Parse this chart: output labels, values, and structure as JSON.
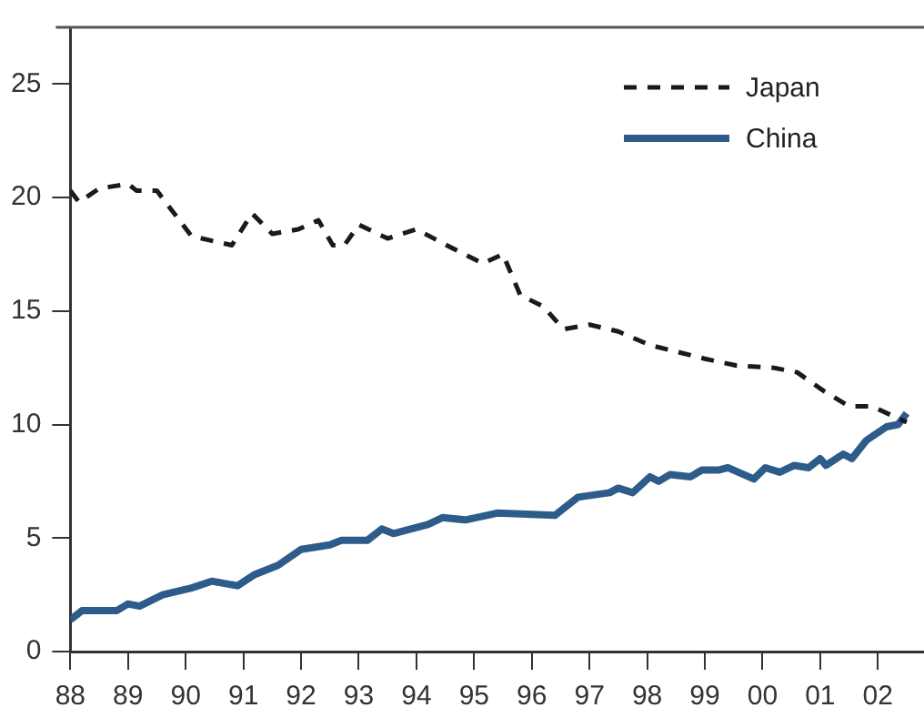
{
  "chart_data": {
    "type": "line",
    "xlim": [
      1988,
      2002.8
    ],
    "ylim": [
      0,
      27.5
    ],
    "xticks": [
      {
        "value": 1988,
        "label": "88"
      },
      {
        "value": 1989,
        "label": "89"
      },
      {
        "value": 1990,
        "label": "90"
      },
      {
        "value": 1991,
        "label": "91"
      },
      {
        "value": 1992,
        "label": "92"
      },
      {
        "value": 1993,
        "label": "93"
      },
      {
        "value": 1994,
        "label": "94"
      },
      {
        "value": 1995,
        "label": "95"
      },
      {
        "value": 1996,
        "label": "96"
      },
      {
        "value": 1997,
        "label": "97"
      },
      {
        "value": 1998,
        "label": "98"
      },
      {
        "value": 1999,
        "label": "99"
      },
      {
        "value": 2000,
        "label": "00"
      },
      {
        "value": 2001,
        "label": "01"
      },
      {
        "value": 2002,
        "label": "02"
      }
    ],
    "yticks": [
      0,
      5,
      10,
      15,
      20,
      25
    ],
    "grid": false,
    "legend": "top right",
    "marker": "none",
    "series": [
      {
        "name": "Japan",
        "color": "#1a1a1a",
        "line_style": "dashed",
        "x": [
          1988.0,
          1988.15,
          1988.5,
          1989.0,
          1989.15,
          1989.5,
          1990.1,
          1990.8,
          1991.15,
          1991.5,
          1991.95,
          1992.3,
          1992.55,
          1992.75,
          1993.0,
          1993.5,
          1994.0,
          1994.6,
          1995.15,
          1995.5,
          1995.8,
          1996.2,
          1996.55,
          1997.0,
          1997.5,
          1998.05,
          1999.0,
          1999.55,
          2000.2,
          2000.6,
          2001.05,
          2001.5,
          2001.9,
          2002.5
        ],
        "values": [
          20.3,
          19.8,
          20.4,
          20.6,
          20.3,
          20.3,
          18.3,
          17.9,
          19.3,
          18.4,
          18.6,
          19.0,
          17.9,
          17.9,
          18.8,
          18.2,
          18.6,
          17.8,
          17.1,
          17.5,
          15.7,
          15.2,
          14.2,
          14.4,
          14.1,
          13.5,
          12.9,
          12.6,
          12.5,
          12.3,
          11.5,
          10.8,
          10.8,
          10.1
        ]
      },
      {
        "name": "China",
        "color": "#2e5c8a",
        "line_style": "solid",
        "x": [
          1988.0,
          1988.2,
          1988.8,
          1989.0,
          1989.2,
          1989.6,
          1990.1,
          1990.45,
          1990.9,
          1991.2,
          1991.6,
          1992.0,
          1992.5,
          1992.7,
          1993.15,
          1993.4,
          1993.6,
          1994.2,
          1994.45,
          1994.85,
          1995.4,
          1996.4,
          1996.8,
          1997.35,
          1997.5,
          1997.75,
          1998.05,
          1998.2,
          1998.4,
          1998.75,
          1998.95,
          1999.25,
          1999.4,
          1999.85,
          2000.05,
          2000.3,
          2000.55,
          2000.8,
          2001.0,
          2001.1,
          2001.4,
          2001.55,
          2001.8,
          2002.15,
          2002.35,
          2002.5
        ],
        "values": [
          1.4,
          1.8,
          1.8,
          2.1,
          2.0,
          2.5,
          2.8,
          3.1,
          2.9,
          3.4,
          3.8,
          4.5,
          4.7,
          4.9,
          4.9,
          5.4,
          5.2,
          5.6,
          5.9,
          5.8,
          6.1,
          6.0,
          6.8,
          7.0,
          7.2,
          7.0,
          7.7,
          7.5,
          7.8,
          7.7,
          8.0,
          8.0,
          8.1,
          7.6,
          8.1,
          7.9,
          8.2,
          8.1,
          8.5,
          8.2,
          8.7,
          8.5,
          9.3,
          9.9,
          10.0,
          10.5
        ]
      }
    ]
  }
}
